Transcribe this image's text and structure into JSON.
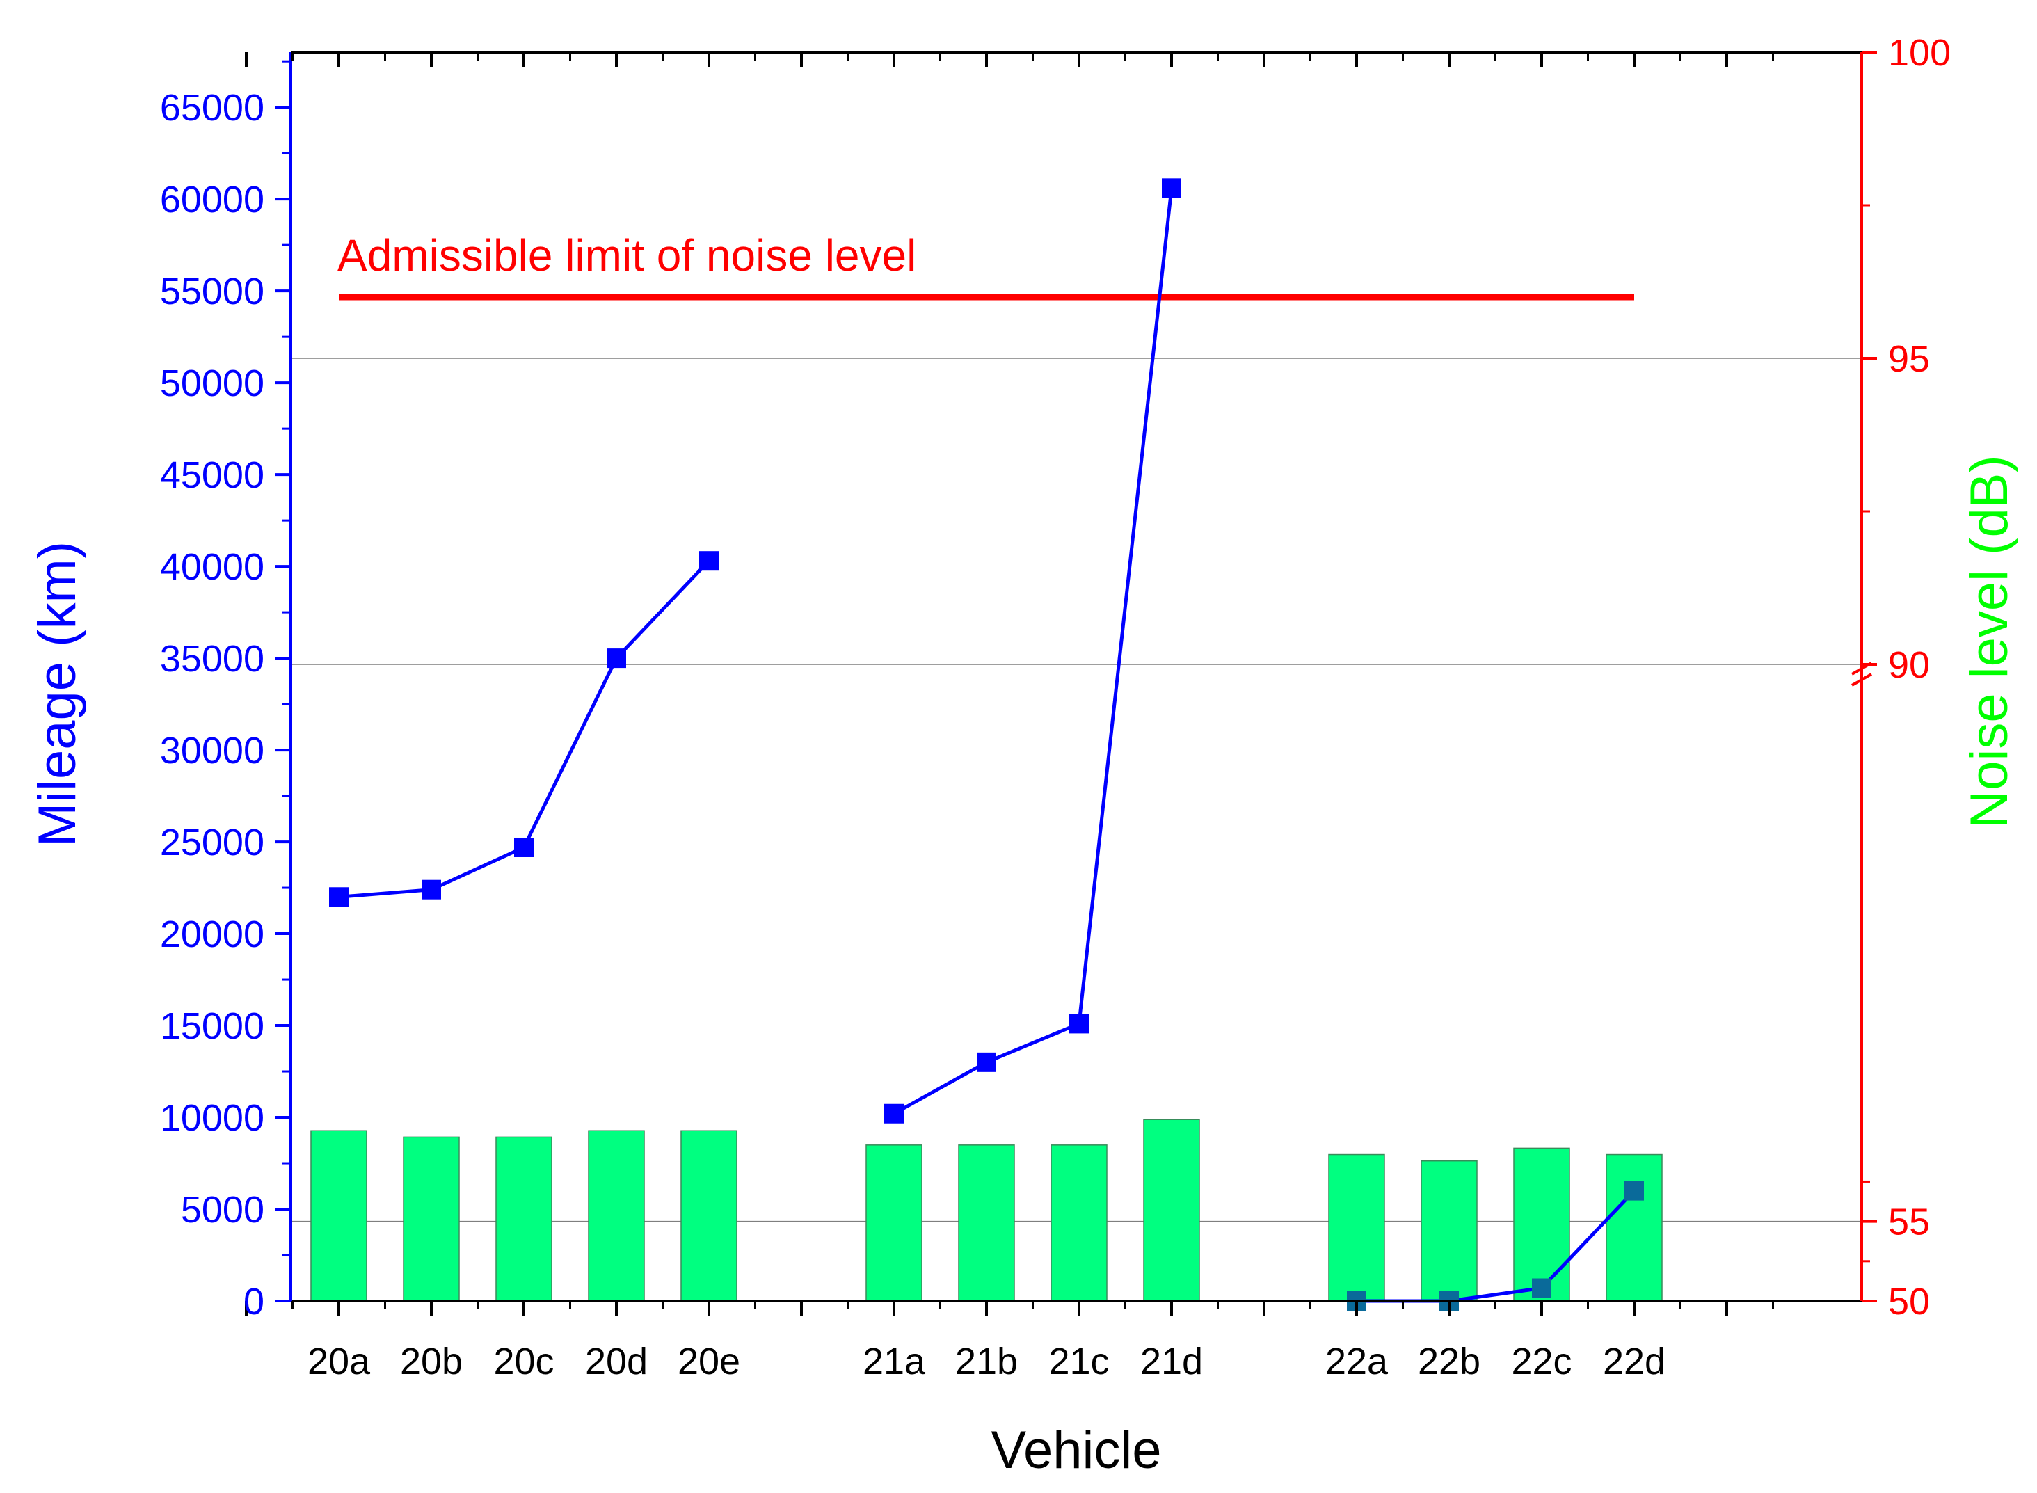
{
  "chart_data": {
    "type": "bar",
    "title": "",
    "xlabel": "Vehicle",
    "ylabel_left": "Mileage (km)",
    "ylabel_right": "Noise level (dB)",
    "categories": [
      "20a",
      "20b",
      "20c",
      "20d",
      "20e",
      "",
      "21a",
      "21b",
      "21c",
      "21d",
      "",
      "22a",
      "22b",
      "22c",
      "22d"
    ],
    "groups": [
      {
        "categories": [
          "20a",
          "20b",
          "20c",
          "20d",
          "20e"
        ]
      },
      {
        "categories": [
          "21a",
          "21b",
          "21c",
          "21d"
        ]
      },
      {
        "categories": [
          "22a",
          "22b",
          "22c",
          "22d"
        ]
      }
    ],
    "series": [
      {
        "name": "",
        "type": "bar",
        "axis": "right",
        "color": "#00ff80",
        "values": [
          60.7,
          60.3,
          60.3,
          60.7,
          60.7,
          null,
          59.8,
          59.8,
          59.8,
          61.4,
          null,
          59.2,
          58.8,
          59.6,
          59.2
        ]
      },
      {
        "name": "",
        "type": "line",
        "axis": "left",
        "color": "#0000ff",
        "marker": "square",
        "values": [
          22000,
          22400,
          24700,
          35000,
          40300,
          null,
          10200,
          13000,
          15100,
          60600,
          null,
          0,
          0,
          700,
          6000
        ]
      }
    ],
    "left_axis": {
      "ylim": [
        0,
        68000
      ],
      "ticks": [
        0,
        5000,
        10000,
        15000,
        20000,
        25000,
        30000,
        35000,
        40000,
        45000,
        50000,
        55000,
        60000,
        65000
      ],
      "color": "#0000ff"
    },
    "right_axis": {
      "ticks": [
        "50",
        "55",
        "90",
        "95",
        "100"
      ],
      "broken": true,
      "lower_segment_ylim": [
        50,
        90
      ],
      "upper_segment_ylim": [
        90,
        100
      ],
      "color": "#ff0000"
    },
    "annotation": {
      "text": "Admissible limit of noise level",
      "value": 96,
      "color": "#ff0000"
    },
    "gridlines": "horizontal at right-axis 55, 90, 95",
    "label_color": "#00ff00"
  }
}
